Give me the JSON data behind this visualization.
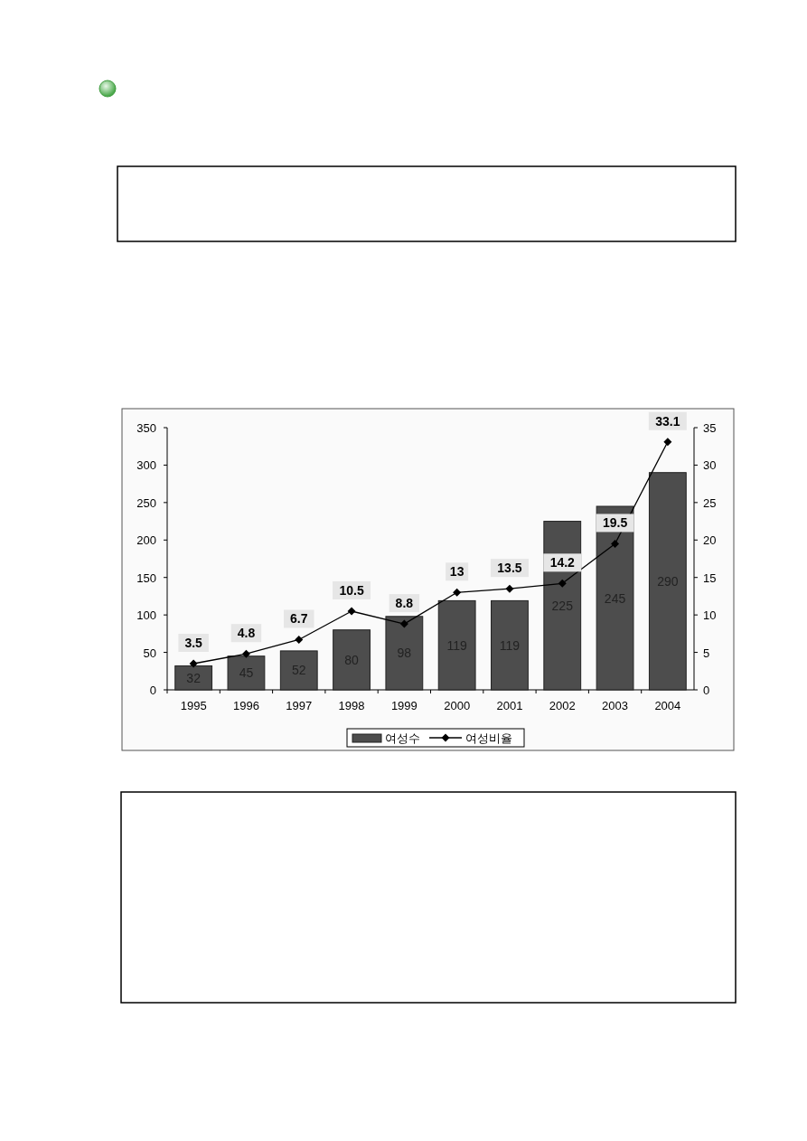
{
  "chart_data": {
    "type": "bar",
    "categories": [
      "1995",
      "1996",
      "1997",
      "1998",
      "1999",
      "2000",
      "2001",
      "2002",
      "2003",
      "2004"
    ],
    "series": [
      {
        "name": "여성수",
        "color": "#4d4d4d",
        "values": [
          32,
          45,
          52,
          80,
          98,
          119,
          119,
          225,
          245,
          290
        ]
      },
      {
        "name": "여성비율",
        "type": "line",
        "axis": "y2",
        "color": "#000000",
        "values": [
          3.5,
          4.8,
          6.7,
          10.5,
          8.8,
          13,
          13.5,
          14.2,
          19.5,
          33.1
        ]
      }
    ],
    "ylim": [
      0,
      350
    ],
    "yticks": [
      0,
      50,
      100,
      150,
      200,
      250,
      300,
      350
    ],
    "y2lim": [
      0,
      35
    ],
    "y2ticks": [
      0,
      5,
      10,
      15,
      20,
      25,
      30,
      35
    ],
    "marker": "diamond",
    "data_labels": true,
    "legend": "bottom",
    "grid": false
  }
}
